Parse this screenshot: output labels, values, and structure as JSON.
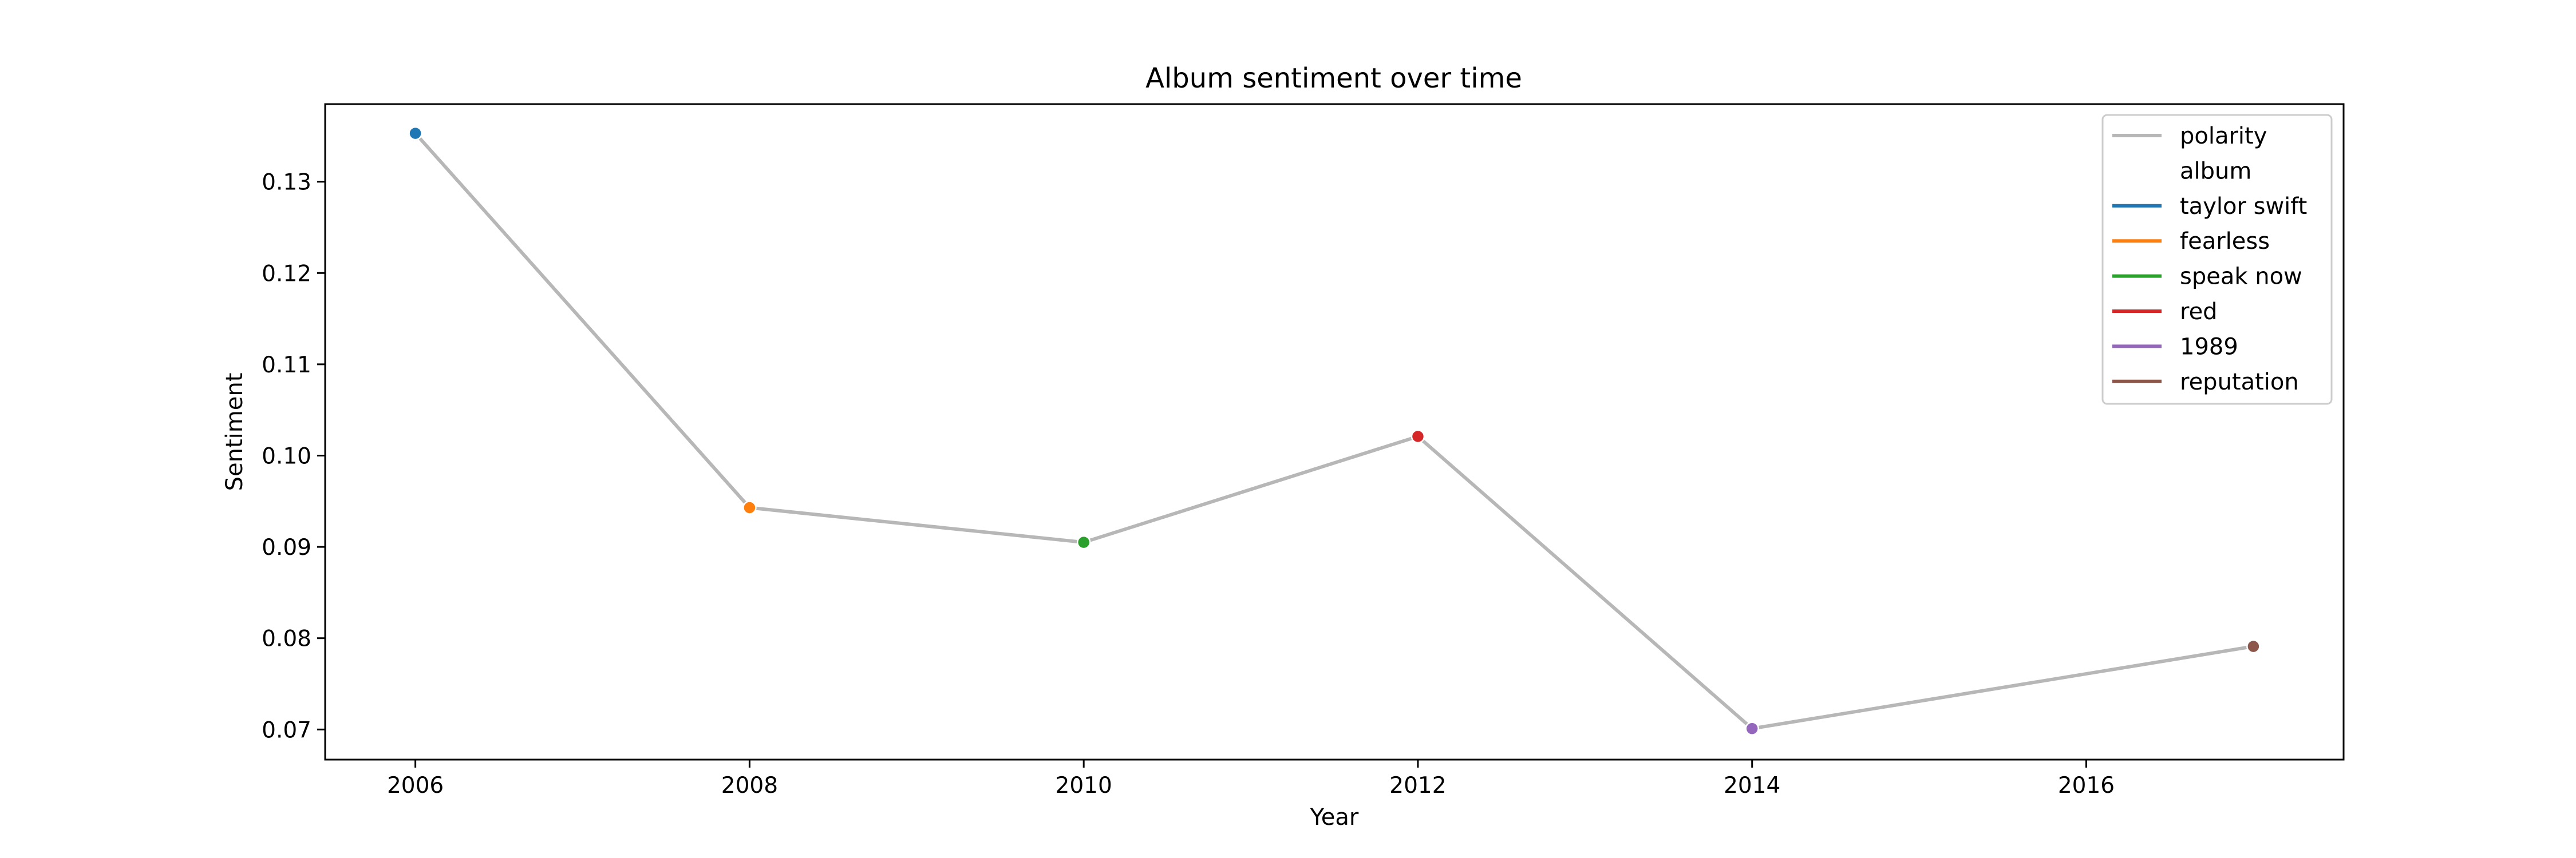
{
  "chart_data": {
    "type": "line",
    "title": "Album sentiment over time",
    "xlabel": "Year",
    "ylabel": "Sentiment",
    "xlim": [
      2005.46,
      2017.54
    ],
    "ylim": [
      0.0667,
      0.1385
    ],
    "xticks": [
      2006,
      2008,
      2010,
      2012,
      2014,
      2016
    ],
    "yticks": [
      0.07,
      0.08,
      0.09,
      0.1,
      0.11,
      0.12,
      0.13
    ],
    "ytick_labels": [
      "0.07",
      "0.08",
      "0.09",
      "0.10",
      "0.11",
      "0.12",
      "0.13"
    ],
    "grid": false,
    "legend_placement": "top-right",
    "line": {
      "name": "polarity",
      "color": "#b7b7b7"
    },
    "hue_title": "album",
    "points": [
      {
        "album": "taylor swift",
        "x": 2006,
        "y": 0.1353,
        "color": "#1f77b4"
      },
      {
        "album": "fearless",
        "x": 2008,
        "y": 0.0943,
        "color": "#ff7f0e"
      },
      {
        "album": "speak now",
        "x": 2010,
        "y": 0.0905,
        "color": "#2ca02c"
      },
      {
        "album": "red",
        "x": 2012,
        "y": 0.1021,
        "color": "#d62728"
      },
      {
        "album": "1989",
        "x": 2014,
        "y": 0.0701,
        "color": "#9467bd"
      },
      {
        "album": "reputation",
        "x": 2017,
        "y": 0.0791,
        "color": "#8c564b"
      }
    ]
  }
}
